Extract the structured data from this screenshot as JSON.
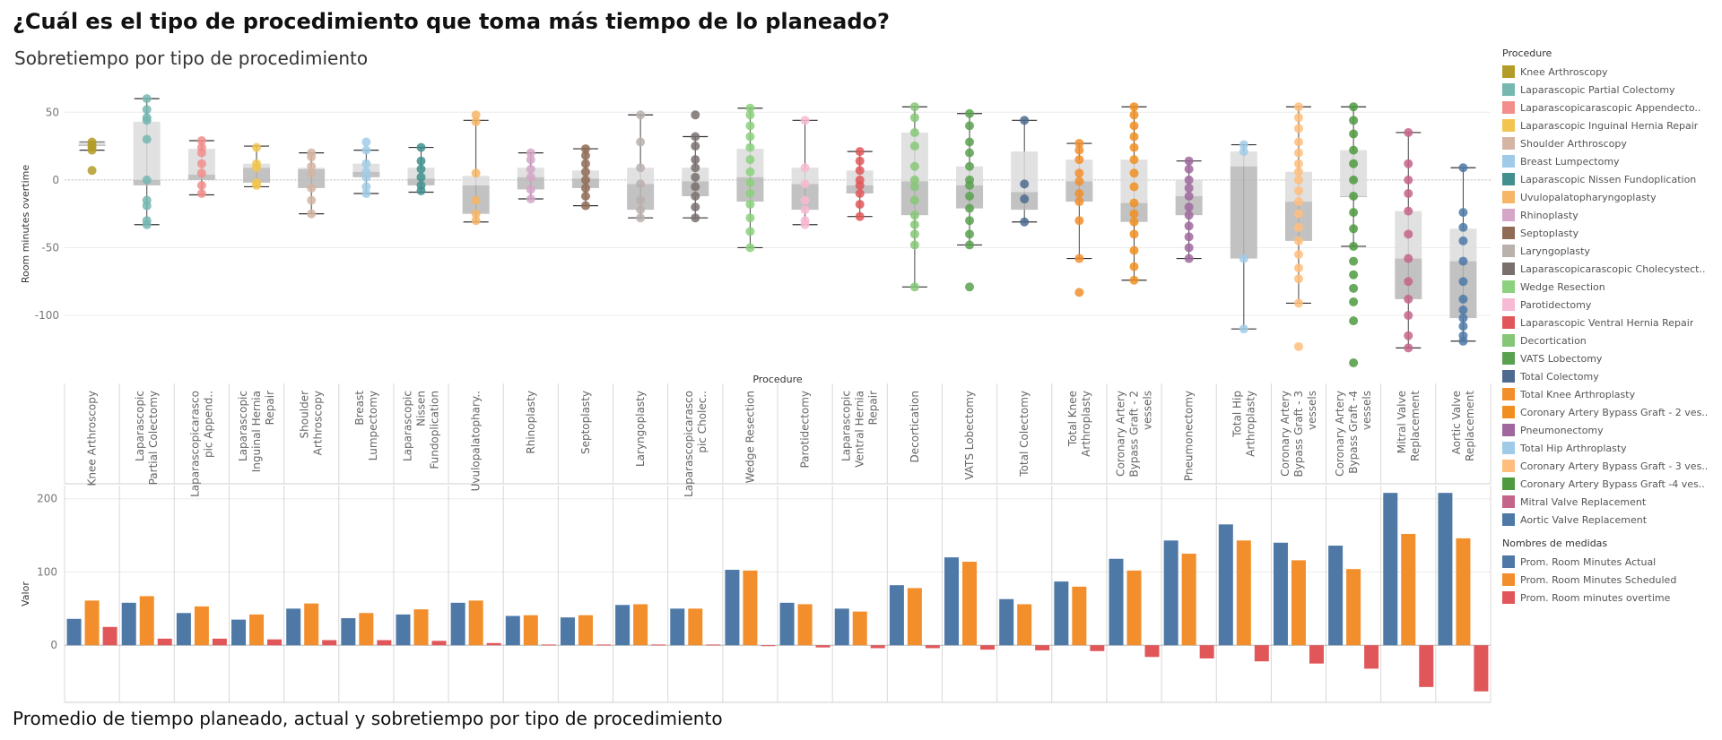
{
  "title": "¿Cuál es el tipo de procedimiento que toma más tiempo de lo planeado?",
  "subtitle": "Sobretiempo por tipo de procedimiento",
  "bottom_title": "Promedio de tiempo planeado, actual y sobretiempo por tipo de procedimiento",
  "legend_procedure": {
    "title": "Procedure",
    "items": [
      {
        "label": "Knee Arthroscopy",
        "color": "#b39c27"
      },
      {
        "label": "Laparascopic Partial Colectomy",
        "color": "#76b7b2"
      },
      {
        "label": "Laparascopicarascopic Appendecto..",
        "color": "#f28e8b"
      },
      {
        "label": "Laparascopic Inguinal Hernia Repair",
        "color": "#f1c550"
      },
      {
        "label": "Shoulder Arthroscopy",
        "color": "#d4b5a3"
      },
      {
        "label": "Breast Lumpectomy",
        "color": "#a0cbe8"
      },
      {
        "label": "Laparascopic Nissen Fundoplication",
        "color": "#41908e"
      },
      {
        "label": "Uvulopalatopharyngoplasty",
        "color": "#f7b566"
      },
      {
        "label": "Rhinoplasty",
        "color": "#d4a6c8"
      },
      {
        "label": "Septoplasty",
        "color": "#8f6a55"
      },
      {
        "label": "Laryngoplasty",
        "color": "#bab0ac"
      },
      {
        "label": "Laparascopicarascopic Cholecystect..",
        "color": "#79706e"
      },
      {
        "label": "Wedge Resection",
        "color": "#8cd17d"
      },
      {
        "label": "Parotidectomy",
        "color": "#f8b9d4"
      },
      {
        "label": "Laparascopic Ventral Hernia Repair",
        "color": "#e15759"
      },
      {
        "label": "Decortication",
        "color": "#86c777"
      },
      {
        "label": "VATS Lobectomy",
        "color": "#59a14f"
      },
      {
        "label": "Total Colectomy",
        "color": "#4e6b8f"
      },
      {
        "label": "Total Knee Arthroplasty",
        "color": "#f28e2b"
      },
      {
        "label": "Coronary Artery Bypass Graft - 2 ves..",
        "color": "#f08f20"
      },
      {
        "label": "Pneumonectomy",
        "color": "#a0679e"
      },
      {
        "label": "Total Hip Arthroplasty",
        "color": "#a0cbe8"
      },
      {
        "label": "Coronary Artery Bypass Graft - 3 ves..",
        "color": "#ffbe7d"
      },
      {
        "label": "Coronary Artery Bypass Graft -4 ves..",
        "color": "#4f9a3f"
      },
      {
        "label": "Mitral Valve Replacement",
        "color": "#c5648a"
      },
      {
        "label": "Aortic Valve Replacement",
        "color": "#4e79a7"
      }
    ]
  },
  "legend_measures": {
    "title": "Nombres de medidas",
    "items": [
      {
        "label": "Prom. Room Minutes Actual",
        "color": "#4e79a7"
      },
      {
        "label": "Prom. Room Minutes Scheduled",
        "color": "#f28e2b"
      },
      {
        "label": "Prom. Room minutes overtime",
        "color": "#e15759"
      }
    ]
  },
  "chart_data": [
    {
      "type": "boxplot",
      "title": "Sobretiempo por tipo de procedimiento",
      "xlabel": "Procedure",
      "ylabel": "Room minutes overtime",
      "ylim": [
        -137,
        72
      ],
      "yticks": [
        50,
        0,
        -50,
        -100
      ],
      "grid": true,
      "categories": [
        "Knee Arthroscopy",
        "Laparascopic Partial Colectomy",
        "Laparascopicarascopic Append..",
        "Laparascopic Inguinal Hernia Repair",
        "Shoulder Arthroscopy",
        "Breast Lumpectomy",
        "Laparascopic Nissen Fundoplication",
        "Uvulopalatophary..",
        "Rhinoplasty",
        "Septoplasty",
        "Laryngoplasty",
        "Laparascopicarascopic Cholec..",
        "Wedge Resection",
        "Parotidectomy",
        "Laparascopic Ventral Hernia Repair",
        "Decortication",
        "VATS Lobectomy",
        "Total Colectomy",
        "Total Knee Arthroplasty",
        "Coronary Artery Bypass Graft - 2 vessels",
        "Pneumonectomy",
        "Total Hip Arthroplasty",
        "Coronary Artery Bypass Graft - 3 vessels",
        "Coronary Artery Bypass Graft -4 vessels",
        "Mitral Valve Replacement",
        "Aortic Valve Replacement"
      ],
      "boxes": [
        {
          "min": 22,
          "q1": 25,
          "median": 26,
          "q3": 28,
          "max": 28,
          "points": [
            7,
            22,
            24,
            26,
            28
          ]
        },
        {
          "min": -33,
          "q1": -4,
          "median": 0,
          "q3": 43,
          "max": 60,
          "points": [
            60,
            52,
            46,
            44,
            30,
            0,
            -15,
            -19,
            -30,
            -33
          ]
        },
        {
          "min": -11,
          "q1": 0,
          "median": 4,
          "q3": 23,
          "max": 29,
          "points": [
            29,
            24,
            20,
            12,
            5,
            -4,
            -10
          ]
        },
        {
          "min": -5,
          "q1": -2,
          "median": 9,
          "q3": 12,
          "max": 25,
          "points": [
            24,
            12,
            9,
            -2,
            -4
          ]
        },
        {
          "min": -25,
          "q1": -6,
          "median": 8,
          "q3": 9,
          "max": 20,
          "points": [
            20,
            17,
            10,
            5,
            -6,
            -15,
            -25
          ]
        },
        {
          "min": -10,
          "q1": 2,
          "median": 6,
          "q3": 12,
          "max": 22,
          "points": [
            28,
            22,
            12,
            6,
            2,
            -5,
            -10
          ]
        },
        {
          "min": -9,
          "q1": -4,
          "median": 1,
          "q3": 9,
          "max": 24,
          "points": [
            24,
            14,
            8,
            2,
            -4,
            -8
          ]
        },
        {
          "min": -31,
          "q1": -25,
          "median": -4,
          "q3": 3,
          "max": 44,
          "points": [
            48,
            43,
            5,
            -15,
            -25,
            -30
          ]
        },
        {
          "min": -14,
          "q1": -7,
          "median": 2,
          "q3": 9,
          "max": 20,
          "points": [
            20,
            15,
            8,
            2,
            -7,
            -14
          ]
        },
        {
          "min": -19,
          "q1": -6,
          "median": 1,
          "q3": 7,
          "max": 23,
          "points": [
            23,
            18,
            12,
            6,
            0,
            -6,
            -12,
            -19
          ]
        },
        {
          "min": -28,
          "q1": -22,
          "median": -3,
          "q3": 9,
          "max": 48,
          "points": [
            48,
            28,
            9,
            -3,
            -15,
            -22,
            -28
          ]
        },
        {
          "min": -28,
          "q1": -12,
          "median": -1,
          "q3": 9,
          "max": 32,
          "points": [
            48,
            32,
            25,
            15,
            9,
            2,
            -5,
            -12,
            -20,
            -28
          ]
        },
        {
          "min": -50,
          "q1": -16,
          "median": 2,
          "q3": 23,
          "max": 53,
          "points": [
            53,
            48,
            40,
            32,
            24,
            15,
            6,
            -2,
            -10,
            -18,
            -28,
            -38,
            -50
          ]
        },
        {
          "min": -33,
          "q1": -22,
          "median": -3,
          "q3": 9,
          "max": 44,
          "points": [
            44,
            9,
            -3,
            -15,
            -22,
            -30,
            -33
          ]
        },
        {
          "min": -27,
          "q1": -10,
          "median": -4,
          "q3": 7,
          "max": 21,
          "points": [
            21,
            14,
            7,
            0,
            -4,
            -10,
            -18,
            -27
          ]
        },
        {
          "min": -79,
          "q1": -26,
          "median": -1,
          "q3": 35,
          "max": 54,
          "points": [
            54,
            46,
            35,
            25,
            10,
            0,
            -5,
            -15,
            -26,
            -33,
            -40,
            -48,
            -79
          ]
        },
        {
          "min": -48,
          "q1": -21,
          "median": -4,
          "q3": 10,
          "max": 49,
          "points": [
            49,
            40,
            28,
            20,
            10,
            0,
            -4,
            -12,
            -21,
            -30,
            -40,
            -48,
            -79
          ]
        },
        {
          "min": -31,
          "q1": -22,
          "median": -9,
          "q3": 21,
          "max": 44,
          "points": [
            44,
            -3,
            -14,
            -31
          ]
        },
        {
          "min": -58,
          "q1": -16,
          "median": -1,
          "q3": 15,
          "max": 27,
          "points": [
            27,
            22,
            15,
            5,
            -1,
            -10,
            -16,
            -30,
            -58,
            -83
          ]
        },
        {
          "min": -74,
          "q1": -31,
          "median": -17,
          "q3": 15,
          "max": 54,
          "points": [
            54,
            48,
            40,
            32,
            24,
            15,
            5,
            -5,
            -17,
            -25,
            -31,
            -40,
            -52,
            -64,
            -74
          ]
        },
        {
          "min": -58,
          "q1": -26,
          "median": -12,
          "q3": 0,
          "max": 14,
          "points": [
            14,
            8,
            0,
            -6,
            -12,
            -20,
            -26,
            -34,
            -42,
            -50,
            -58
          ]
        },
        {
          "min": -110,
          "q1": -58,
          "median": 10,
          "q3": 21,
          "max": 26,
          "points": [
            26,
            21,
            -58,
            -110
          ]
        },
        {
          "min": -91,
          "q1": -45,
          "median": -16,
          "q3": 6,
          "max": 54,
          "points": [
            54,
            46,
            38,
            28,
            20,
            12,
            6,
            0,
            -8,
            -16,
            -25,
            -35,
            -45,
            -55,
            -65,
            -73,
            -91,
            -123
          ]
        },
        {
          "min": -49,
          "q1": -12,
          "median": -12,
          "q3": 22,
          "max": 54,
          "points": [
            54,
            44,
            34,
            22,
            12,
            0,
            -12,
            -24,
            -36,
            -49,
            -60,
            -70,
            -80,
            -90,
            -104,
            -135
          ]
        },
        {
          "min": -124,
          "q1": -88,
          "median": -58,
          "q3": -23,
          "max": 35,
          "points": [
            35,
            12,
            0,
            -10,
            -23,
            -40,
            -58,
            -75,
            -88,
            -100,
            -115,
            -124
          ]
        },
        {
          "min": -119,
          "q1": -102,
          "median": -60,
          "q3": -36,
          "max": 9,
          "points": [
            9,
            -24,
            -35,
            -45,
            -60,
            -75,
            -88,
            -96,
            -102,
            -108,
            -115,
            -119
          ]
        }
      ]
    },
    {
      "type": "bar",
      "title": "Promedio de tiempo planeado, actual y sobretiempo por tipo de procedimiento",
      "ylabel": "Valor",
      "ylim": [
        -78,
        218
      ],
      "yticks": [
        200,
        100,
        0
      ],
      "categories": [
        "Knee Arthroscopy",
        "Laparascopic Partial Colectomy",
        "Laparascopicarascopic Append..",
        "Laparascopic Inguinal Hernia Repair",
        "Shoulder Arthroscopy",
        "Breast Lumpectomy",
        "Laparascopic Nissen Fundoplication",
        "Uvulopalatophary..",
        "Rhinoplasty",
        "Septoplasty",
        "Laryngoplasty",
        "Laparascopicarascopic Cholec..",
        "Wedge Resection",
        "Parotidectomy",
        "Laparascopic Ventral Hernia Repair",
        "Decortication",
        "VATS Lobectomy",
        "Total Colectomy",
        "Total Knee Arthroplasty",
        "Coronary Artery Bypass Graft - 2 vessels",
        "Pneumonectomy",
        "Total Hip Arthroplasty",
        "Coronary Artery Bypass Graft - 3 vessels",
        "Coronary Artery Bypass Graft -4 vessels",
        "Mitral Valve Replacement",
        "Aortic Valve Replacement"
      ],
      "series": [
        {
          "name": "Prom. Room Minutes Actual",
          "color": "#4e79a7",
          "values": [
            36,
            58,
            44,
            35,
            50,
            37,
            42,
            58,
            40,
            38,
            55,
            50,
            103,
            58,
            50,
            82,
            120,
            63,
            87,
            118,
            143,
            165,
            140,
            136,
            208,
            208
          ]
        },
        {
          "name": "Prom. Room Minutes Scheduled",
          "color": "#f28e2b",
          "values": [
            61,
            67,
            53,
            42,
            57,
            44,
            49,
            61,
            41,
            41,
            56,
            50,
            102,
            56,
            46,
            78,
            114,
            56,
            80,
            102,
            125,
            143,
            116,
            104,
            152,
            146
          ]
        },
        {
          "name": "Prom. Room minutes overtime",
          "color": "#e15759",
          "values": [
            25,
            9,
            9,
            8,
            7,
            7,
            6,
            3,
            1,
            1,
            1,
            1,
            -1,
            -3,
            -4,
            -4,
            -6,
            -7,
            -8,
            -16,
            -18,
            -22,
            -25,
            -32,
            -57,
            -63
          ]
        }
      ]
    }
  ],
  "column_labels": [
    [
      "Knee Arthroscopy"
    ],
    [
      "Laparascopic",
      "Partial Colectomy"
    ],
    [
      "Laparascopicarasco",
      "pic Append.."
    ],
    [
      "Laparascopic",
      "Inguinal Hernia",
      "Repair"
    ],
    [
      "Shoulder",
      "Arthroscopy"
    ],
    [
      "Breast",
      "Lumpectomy"
    ],
    [
      "Laparascopic",
      "Nissen",
      "Fundoplication"
    ],
    [
      "Uvulopalatophary.."
    ],
    [
      "Rhinoplasty"
    ],
    [
      "Septoplasty"
    ],
    [
      "Laryngoplasty"
    ],
    [
      "Laparascopicarasco",
      "pic Cholec.."
    ],
    [
      "Wedge Resection"
    ],
    [
      "Parotidectomy"
    ],
    [
      "Laparascopic",
      "Ventral Hernia",
      "Repair"
    ],
    [
      "Decortication"
    ],
    [
      "VATS Lobectomy"
    ],
    [
      "Total Colectomy"
    ],
    [
      "Total Knee",
      "Arthroplasty"
    ],
    [
      "Coronary Artery",
      "Bypass Graft - 2",
      "vessels"
    ],
    [
      "Pneumonectomy"
    ],
    [
      "Total Hip",
      "Arthroplasty"
    ],
    [
      "Coronary Artery",
      "Bypass Graft - 3",
      "vessels"
    ],
    [
      "Coronary Artery",
      "Bypass Graft -4",
      "vessels"
    ],
    [
      "Mitral Valve",
      "Replacement"
    ],
    [
      "Aortic Valve",
      "Replacement"
    ]
  ]
}
